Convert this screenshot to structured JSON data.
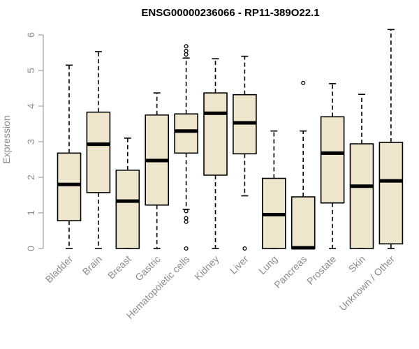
{
  "chart_data": {
    "type": "boxplot",
    "title": "ENSG00000236066 - RP11-389O22.1",
    "ylabel": "Expression",
    "xlabel": "",
    "ylim": [
      0,
      6.2
    ],
    "yticks": [
      0,
      1,
      2,
      3,
      4,
      5,
      6
    ],
    "box_color": "#ede6cc",
    "categories": [
      "Bladder",
      "Brain",
      "Breast",
      "Gastric",
      "Hematopoietic cells",
      "Kidney",
      "Liver",
      "Lung",
      "Pancreas",
      "Prostate",
      "Skin",
      "Unknown / Other"
    ],
    "boxes": [
      {
        "category": "Bladder",
        "whisker_low": 0.0,
        "q1": 0.78,
        "median": 1.8,
        "q3": 2.68,
        "whisker_high": 5.15,
        "outliers": []
      },
      {
        "category": "Brain",
        "whisker_low": 0.0,
        "q1": 1.57,
        "median": 2.93,
        "q3": 3.83,
        "whisker_high": 5.53,
        "outliers": []
      },
      {
        "category": "Breast",
        "whisker_low": 0.0,
        "q1": 0.0,
        "median": 1.33,
        "q3": 2.2,
        "whisker_high": 3.1,
        "outliers": []
      },
      {
        "category": "Gastric",
        "whisker_low": 0.0,
        "q1": 1.22,
        "median": 2.47,
        "q3": 3.75,
        "whisker_high": 4.37,
        "outliers": []
      },
      {
        "category": "Hematopoietic cells",
        "whisker_low": 1.1,
        "q1": 2.68,
        "median": 3.3,
        "q3": 3.78,
        "whisker_high": 5.35,
        "outliers": [
          0.0,
          0.75,
          0.85,
          1.05,
          5.45,
          5.55,
          5.68
        ]
      },
      {
        "category": "Kidney",
        "whisker_low": 0.0,
        "q1": 2.06,
        "median": 3.8,
        "q3": 4.37,
        "whisker_high": 5.33,
        "outliers": []
      },
      {
        "category": "Liver",
        "whisker_low": 1.48,
        "q1": 2.66,
        "median": 3.53,
        "q3": 4.32,
        "whisker_high": 5.4,
        "outliers": [
          0.0
        ]
      },
      {
        "category": "Lung",
        "whisker_low": 0.0,
        "q1": 0.0,
        "median": 0.95,
        "q3": 1.97,
        "whisker_high": 3.3,
        "outliers": []
      },
      {
        "category": "Pancreas",
        "whisker_low": 0.0,
        "q1": 0.0,
        "median": 0.02,
        "q3": 1.45,
        "whisker_high": 3.3,
        "outliers": [
          4.65
        ]
      },
      {
        "category": "Prostate",
        "whisker_low": 0.0,
        "q1": 1.28,
        "median": 2.68,
        "q3": 3.7,
        "whisker_high": 4.63,
        "outliers": []
      },
      {
        "category": "Skin",
        "whisker_low": 0.0,
        "q1": 0.0,
        "median": 1.75,
        "q3": 2.94,
        "whisker_high": 4.33,
        "outliers": []
      },
      {
        "category": "Unknown / Other",
        "whisker_low": 0.0,
        "q1": 0.13,
        "median": 1.9,
        "q3": 2.98,
        "whisker_high": 6.15,
        "outliers": []
      }
    ]
  }
}
